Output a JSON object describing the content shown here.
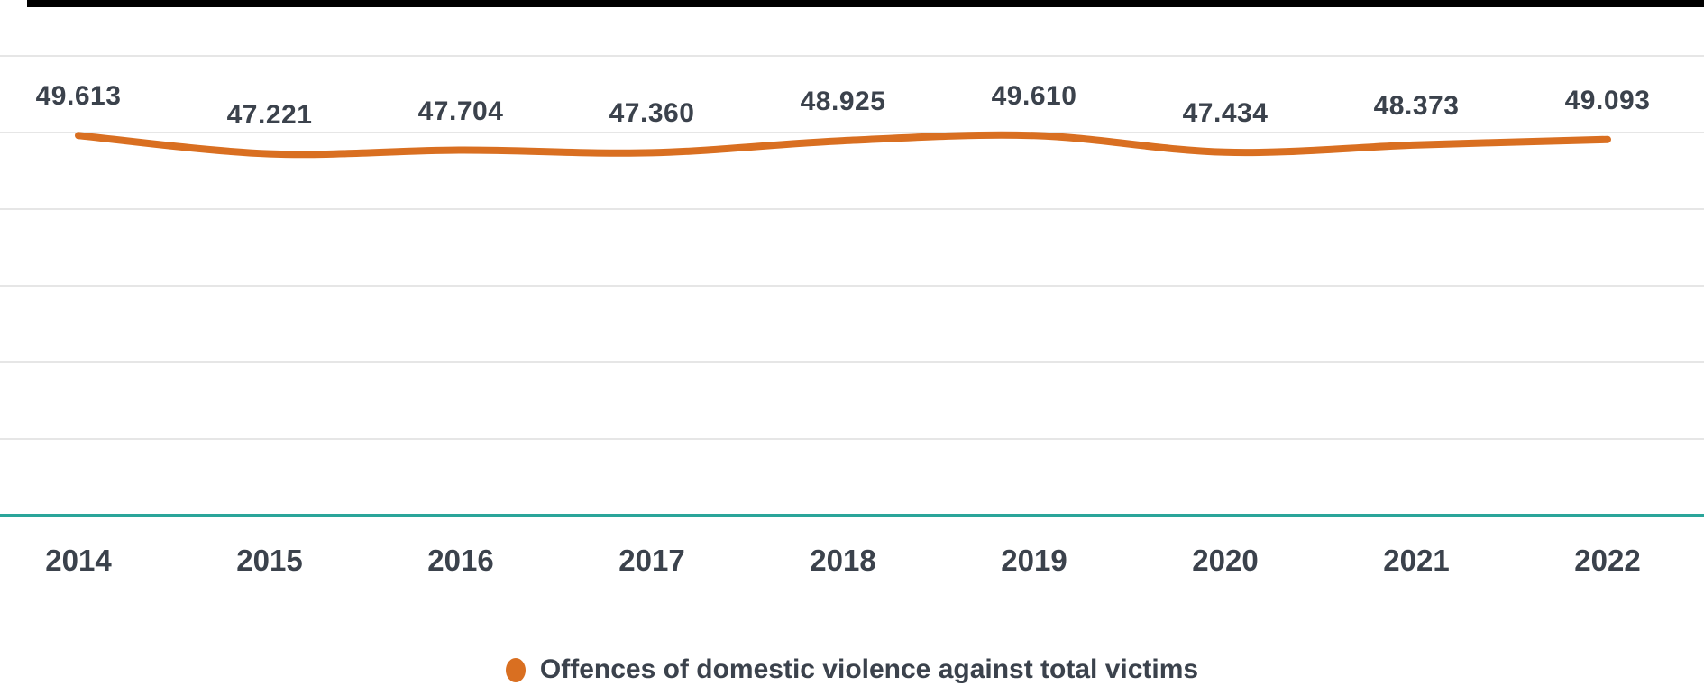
{
  "page": {
    "top_border_color": "#000000",
    "background_color": "#ffffff"
  },
  "chart_data": {
    "type": "line",
    "title": "",
    "xlabel": "",
    "ylabel": "",
    "categories": [
      "2014",
      "2015",
      "2016",
      "2017",
      "2018",
      "2019",
      "2020",
      "2021",
      "2022"
    ],
    "series": [
      {
        "name": "Offences of domestic violence against total victims",
        "values": [
          49613,
          47221,
          47704,
          47360,
          48925,
          49610,
          47434,
          48373,
          49093
        ],
        "labels": [
          "49.613",
          "47.221",
          "47.704",
          "47.360",
          "48.925",
          "49.610",
          "47.434",
          "48.373",
          "49.093"
        ],
        "color": "#d96f21"
      }
    ],
    "ylim": [
      0,
      60000
    ],
    "gridline_interval": 10000,
    "grid": true,
    "gridline_color": "#e6e6e6",
    "baseline_color": "#2aa59a",
    "label_color": "#3b424c",
    "legend_position": "bottom"
  },
  "legend": {
    "items": [
      {
        "label": "Offences of domestic violence against total victims",
        "color": "#d96f21"
      }
    ]
  }
}
